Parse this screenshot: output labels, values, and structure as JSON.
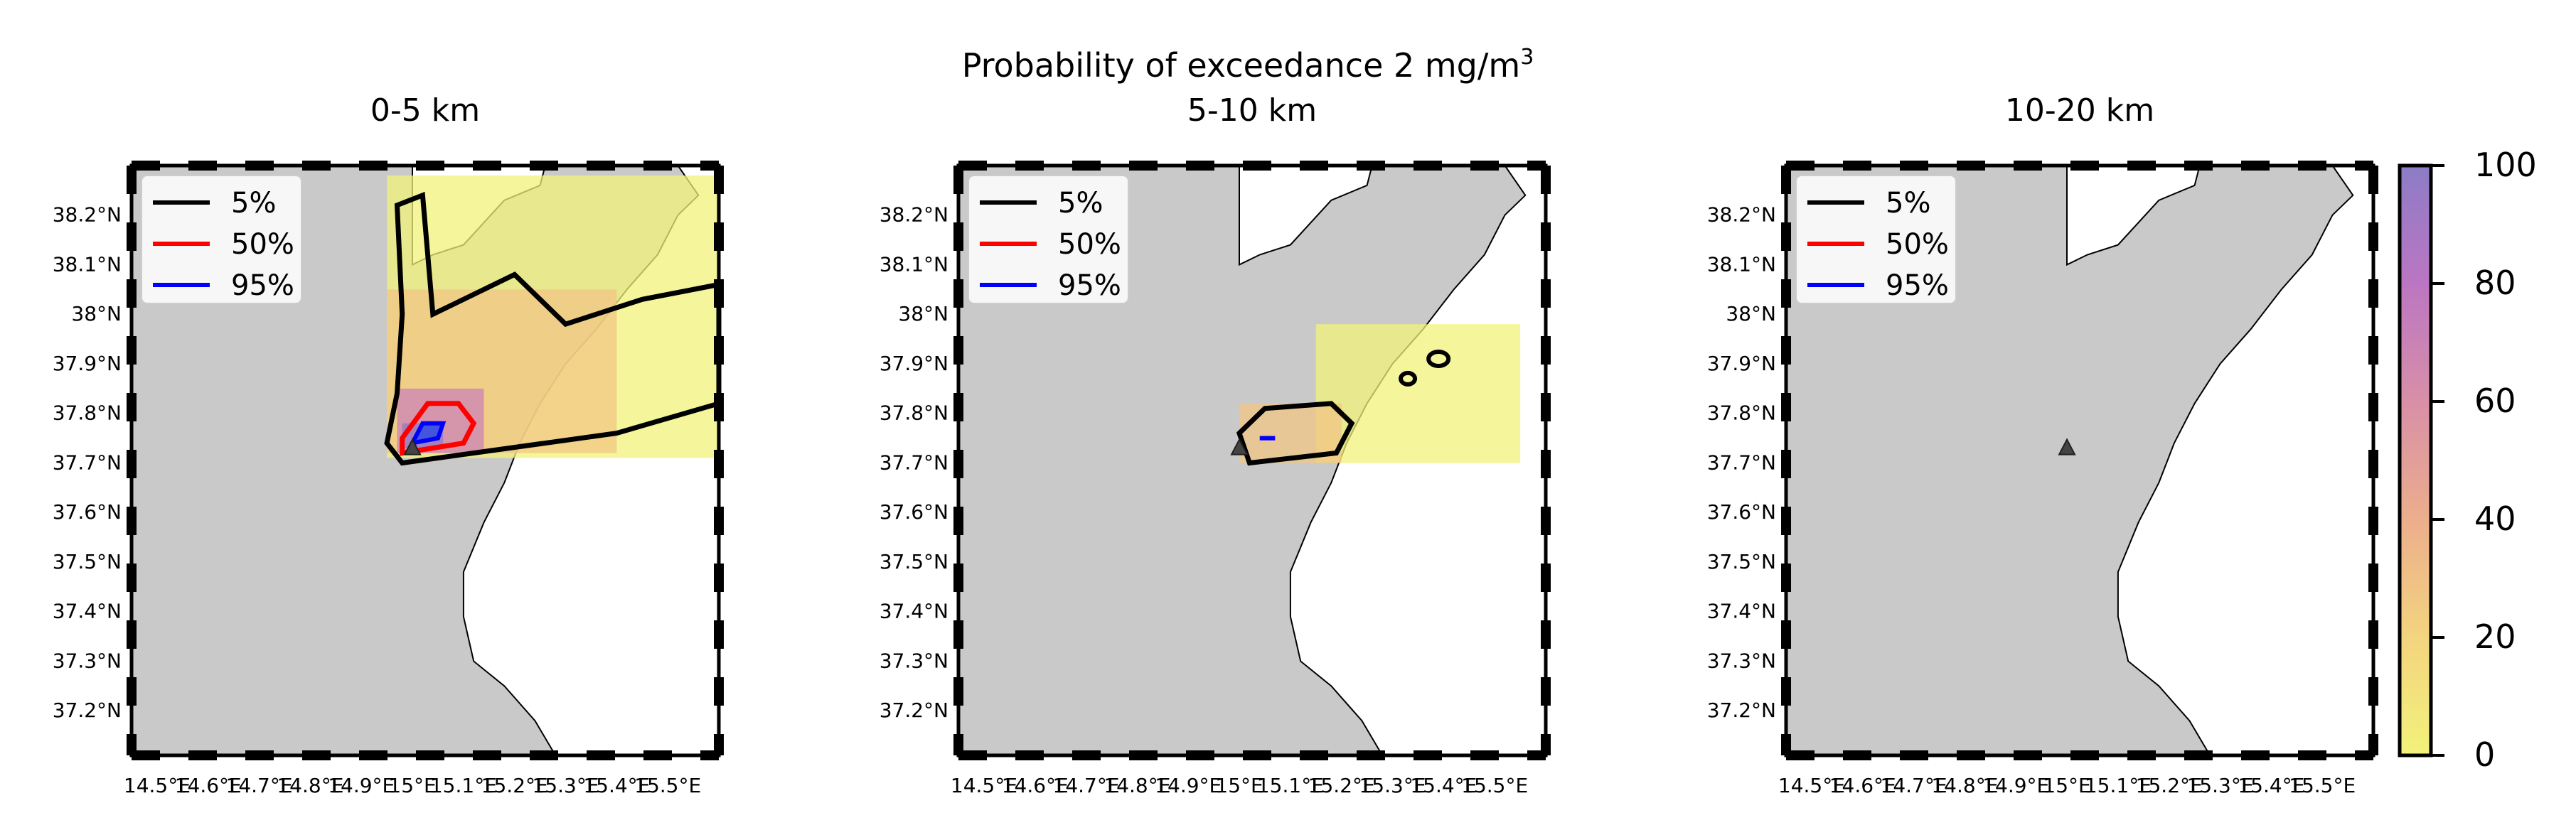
{
  "figure": {
    "title_main": "Probability of exceedance 2 mg/m",
    "title_sup": "3"
  },
  "chart_data": [
    {
      "type": "heatmap",
      "title": "0-5 km",
      "xlim": [
        14.45,
        15.6
      ],
      "ylim": [
        37.11,
        38.3
      ],
      "x_ticks": [
        "14.5°E",
        "14.6°E",
        "14.7°E",
        "14.8°E",
        "14.9°E",
        "15°E",
        "15.1°E",
        "15.2°E",
        "15.3°E",
        "15.4°E",
        "15.5°E"
      ],
      "y_ticks": [
        "38.2°N",
        "38.1°N",
        "38°N",
        "37.9°N",
        "37.8°N",
        "37.7°N",
        "37.6°N",
        "37.5°N",
        "37.4°N",
        "37.3°N",
        "37.2°N"
      ],
      "legend": [
        "5%",
        "50%",
        "95%"
      ],
      "legend_position": "upper left",
      "vent": [
        15.0,
        37.73
      ],
      "probability_field_approx": [
        {
          "lon": [
            14.98,
            15.06
          ],
          "lat": [
            37.73,
            37.78
          ],
          "value": 98
        },
        {
          "lon": [
            14.97,
            15.14
          ],
          "lat": [
            37.72,
            37.85
          ],
          "value": 60
        },
        {
          "lon": [
            14.95,
            15.4
          ],
          "lat": [
            37.72,
            38.05
          ],
          "value": 25
        },
        {
          "lon": [
            14.95,
            15.6
          ],
          "lat": [
            37.71,
            38.28
          ],
          "value": 8
        }
      ]
    },
    {
      "type": "heatmap",
      "title": "5-10 km",
      "xlim": [
        14.45,
        15.6
      ],
      "ylim": [
        37.11,
        38.3
      ],
      "x_ticks": [
        "14.5°E",
        "14.6°E",
        "14.7°E",
        "14.8°E",
        "14.9°E",
        "15°E",
        "15.1°E",
        "15.2°E",
        "15.3°E",
        "15.4°E",
        "15.5°E"
      ],
      "y_ticks": [
        "38.2°N",
        "38.1°N",
        "38°N",
        "37.9°N",
        "37.8°N",
        "37.7°N",
        "37.6°N",
        "37.5°N",
        "37.4°N",
        "37.3°N",
        "37.2°N"
      ],
      "legend": [
        "5%",
        "50%",
        "95%"
      ],
      "legend_position": "upper left",
      "vent": [
        15.0,
        37.73
      ],
      "probability_field_approx": [
        {
          "lon": [
            15.04,
            15.07
          ],
          "lat": [
            37.745,
            37.755
          ],
          "value": 55
        },
        {
          "lon": [
            15.0,
            15.2
          ],
          "lat": [
            37.7,
            37.82
          ],
          "value": 20
        },
        {
          "lon": [
            15.15,
            15.55
          ],
          "lat": [
            37.7,
            37.98
          ],
          "value": 5
        }
      ]
    },
    {
      "type": "heatmap",
      "title": "10-20 km",
      "xlim": [
        14.45,
        15.6
      ],
      "ylim": [
        37.11,
        38.3
      ],
      "x_ticks": [
        "14.5°E",
        "14.6°E",
        "14.7°E",
        "14.8°E",
        "14.9°E",
        "15°E",
        "15.1°E",
        "15.2°E",
        "15.3°E",
        "15.4°E",
        "15.5°E"
      ],
      "y_ticks": [
        "38.2°N",
        "38.1°N",
        "38°N",
        "37.9°N",
        "37.8°N",
        "37.7°N",
        "37.6°N",
        "37.5°N",
        "37.4°N",
        "37.3°N",
        "37.2°N"
      ],
      "legend": [
        "5%",
        "50%",
        "95%"
      ],
      "legend_position": "upper left",
      "vent": [
        15.0,
        37.73
      ],
      "probability_field_approx": []
    }
  ],
  "colorbar": {
    "range": [
      0,
      100
    ],
    "ticks": [
      "100",
      "80",
      "60",
      "40",
      "20",
      "0"
    ],
    "colors": [
      "#f2f27a",
      "#f3e07e",
      "#f2c684",
      "#ecae8c",
      "#e39c97",
      "#d88fa7",
      "#cc82b6",
      "#bb76c2",
      "#a574c8",
      "#8c7cc6"
    ]
  },
  "colors": {
    "land": "#c9c9c9",
    "sea": "#ffffff",
    "contour_5": "#000000",
    "contour_50": "#ff0000",
    "contour_95": "#0000ff"
  }
}
